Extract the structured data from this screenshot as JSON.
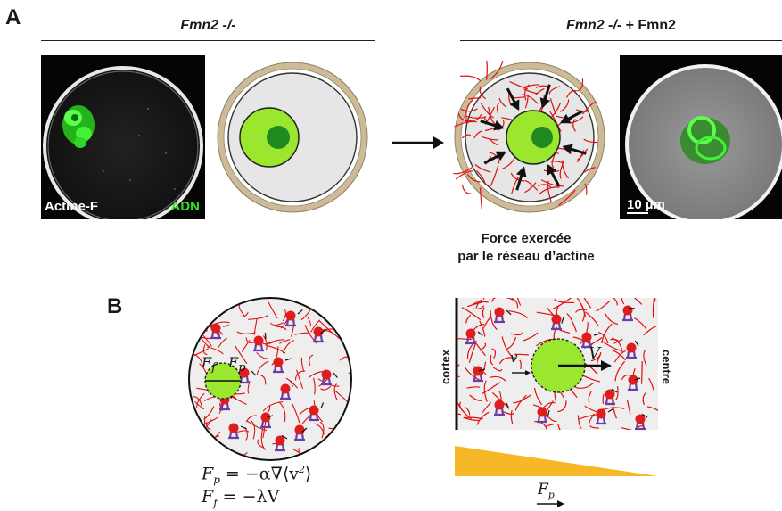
{
  "panelA": {
    "letter": "A",
    "left_title_italic": "Fmn2 -/-",
    "right_title_italic": "Fmn2 -/-",
    "right_title_plain": " + Fmn2",
    "label_actin": "Actine-F",
    "label_dna": "ADN",
    "scale_bar": "10 µm",
    "caption_line1": "Force exercée",
    "caption_line2": "par le réseau d’actine",
    "colors": {
      "dna_green": "#33e02a",
      "actin_red": "#e01010",
      "nucleus_green": "#9be62e",
      "nucleolus": "#1f8a1f",
      "zona": "#cdbb98"
    }
  },
  "panelB": {
    "letter": "B",
    "label_Ff_sym": "F",
    "label_Ff_sub": "f",
    "label_Fp_sym": "F",
    "label_Fp_sub": "p",
    "eq1_lhs": "F",
    "eq1_sub": "p",
    "eq1_rhs": " = −α∇⟨v",
    "eq1_sup": "2",
    "eq1_end": "⟩",
    "eq2_lhs": "F",
    "eq2_sub": "f",
    "eq2_rhs": " = −λV",
    "label_cortex": "cortex",
    "label_centre": "centre",
    "label_v": "v",
    "label_V": "V",
    "grad_label_sym": "F",
    "grad_label_sub": "p",
    "colors": {
      "gradient": "#f6b826",
      "motor": "#6a3da8",
      "vesicle": "#e01d1d"
    }
  }
}
